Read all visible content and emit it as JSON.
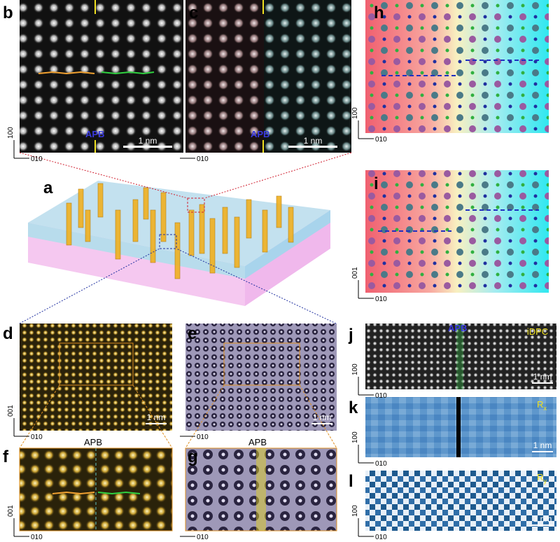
{
  "panels": {
    "a": {
      "letter": "a"
    },
    "b": {
      "letter": "b",
      "marker": "APB",
      "scale_bar": "1 nm",
      "axis_v": "100",
      "axis_h": "010"
    },
    "c": {
      "letter": "c",
      "marker": "APB",
      "scale_bar": "1 nm",
      "axis_h": "010"
    },
    "h": {
      "letter": "h",
      "axis_v": "100",
      "axis_h": "010"
    },
    "i": {
      "letter": "i",
      "axis_v": "001",
      "axis_h": "010"
    },
    "d": {
      "letter": "d",
      "scale_bar": "1 nm",
      "axis_v": "001",
      "axis_h": "010"
    },
    "e": {
      "letter": "e",
      "scale_bar": "1 nm",
      "axis_h": "010"
    },
    "f": {
      "letter": "f",
      "marker": "APB",
      "axis_v": "001",
      "axis_h": "010"
    },
    "g": {
      "letter": "g",
      "marker": "APB",
      "axis_h": "010"
    },
    "j": {
      "letter": "j",
      "marker": "APB",
      "mode": "iDPC",
      "scale_bar": "1 nm",
      "axis_v": "100",
      "axis_h": "010"
    },
    "k": {
      "letter": "k",
      "mode": "R",
      "mode_sub": "x",
      "scale_bar": "1 nm",
      "axis_v": "100",
      "axis_h": "010"
    },
    "l": {
      "letter": "l",
      "mode": "R",
      "mode_sub": "y",
      "scale_bar": "1 nm",
      "axis_v": "100",
      "axis_h": "010"
    }
  }
}
